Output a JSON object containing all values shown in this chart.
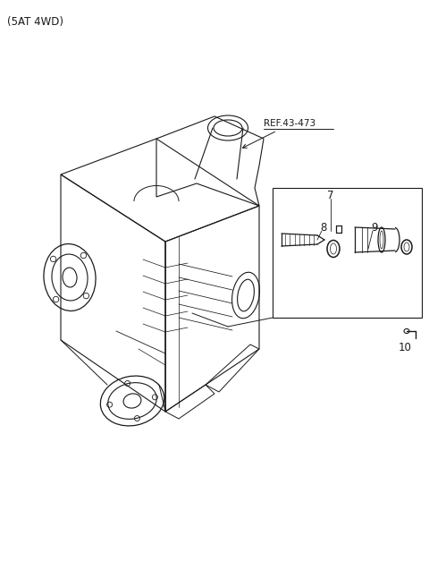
{
  "title": "(5AT 4WD)",
  "background_color": "#ffffff",
  "line_color": "#1a1a1a",
  "ref_label": "REF.43-473",
  "part_labels": [
    "7",
    "8",
    "9",
    "10"
  ],
  "fig_width": 4.8,
  "fig_height": 6.56,
  "dpi": 100
}
